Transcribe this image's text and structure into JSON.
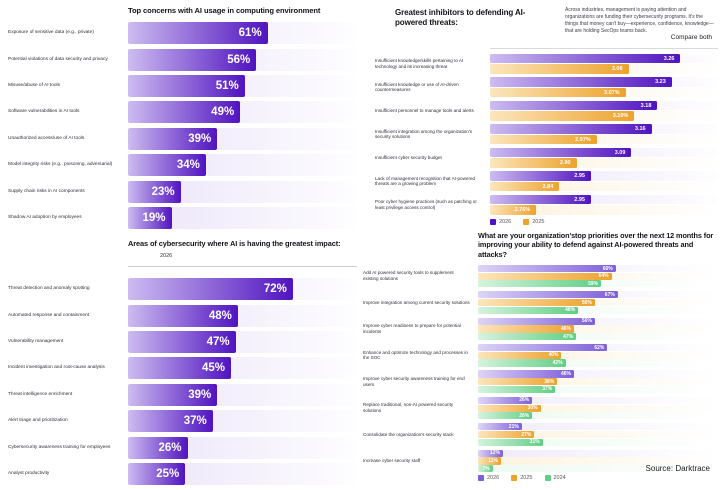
{
  "source": "Source: Darktrace",
  "colors": {
    "purple_2026_deep": "#5013c0",
    "purple_2026_mid": "#7e5fd9",
    "orange_2025": "#eda22c",
    "green_2024": "#5fcf85"
  },
  "chart_data": [
    {
      "type": "bar",
      "title": "Top concerns with AI usage in computing environment",
      "categories": [
        "Exposure of sensitive data (e.g., private)",
        "Potential violations of data security and privacy",
        "Misuse/abuse of AI tools",
        "Software vulnerabilities in AI tools",
        "Unauthorized access/use of AI tools",
        "Model integrity risks (e.g., poisoning, adversarial)",
        "Supply chain risks in AI components",
        "Shadow AI adoption by employees"
      ],
      "values": [
        61,
        56,
        51,
        49,
        39,
        34,
        23,
        19
      ],
      "value_labels": [
        "61%",
        "56%",
        "51%",
        "49%",
        "39%",
        "34%",
        "23%",
        "19%"
      ],
      "bar_color": "#5013c0",
      "xlim": [
        0,
        100
      ],
      "grid": false,
      "legend_position": "none"
    },
    {
      "type": "bar",
      "title": "Areas of cybersecurity where AI is having the greatest impact:",
      "year_header": "2026",
      "categories": [
        "Threat detection and anomaly spotting",
        "Automated response and containment",
        "Vulnerability management",
        "Incident investigation and root-cause analysis",
        "Threat intelligence enrichment",
        "Alert triage and prioritization",
        "Cybersecurity awareness training for employees",
        "Analyst productivity"
      ],
      "values": [
        72,
        48,
        47,
        45,
        39,
        37,
        26,
        25
      ],
      "value_labels": [
        "72%",
        "48%",
        "47%",
        "45%",
        "39%",
        "37%",
        "26%",
        "25%"
      ],
      "bar_color": "#5013c0",
      "xlim": [
        0,
        100
      ],
      "grid": false,
      "legend_position": "none"
    },
    {
      "type": "bar",
      "title": "Greatest inhibitors to defending AI-powered threats:",
      "description": "Across industries, management is paying attention and organizations are funding their cybersecurity programs. It's the things that money can't buy—experience, confidence, knowledge—that are holding SecOps teams back.",
      "compare_label": "Compare both",
      "categories": [
        "Insufficient knowledge/skills pertaining to AI technology and its increasing threat",
        "Insufficient knowledge or use of AI-driven countermeasures",
        "Insufficient personnel to manage tools and alerts",
        "Insufficient integration among the organization's security solutions",
        "Insufficient cyber security budget",
        "Lack of management recognition that AI-powered threats are a growing problem",
        "Poor cyber hygiene practices (such as patching or least privilege access control)"
      ],
      "series": [
        {
          "name": "2026",
          "color": "#5013c0",
          "values": [
            3.26,
            3.23,
            3.18,
            3.16,
            3.09,
            2.95,
            2.95
          ],
          "value_labels": [
            "3.26",
            "3.23",
            "3.18",
            "3.16",
            "3.09",
            "2.95",
            "2.95"
          ]
        },
        {
          "name": "2025",
          "color": "#eda22c",
          "values": [
            3.08,
            3.07,
            3.1,
            2.97,
            2.9,
            2.84,
            2.76
          ],
          "value_labels": [
            "3.08",
            "3.07%",
            "3.10%",
            "2.97%",
            "2.90",
            "2.84",
            "2.76%"
          ]
        }
      ],
      "xlim": [
        2.6,
        3.39
      ],
      "grid": false,
      "legend": [
        "2026",
        "2025"
      ],
      "legend_position": "bottom"
    },
    {
      "type": "bar",
      "title": "What are your organization'stop priorities over the next 12 months for improving your ability to defend against AI-powered threats and attacks?",
      "categories": [
        "Add AI powered security tools to supplement existing solutions",
        "Improve integration among current security solutions",
        "Improve cyber readiness to prepare for potential incidents",
        "Enhance and optimize technology and processes in the SOC",
        "Improve cyber security awareness training for end users",
        "Replace traditional, non-AI powered security solutions",
        "Consolidate the organization's security stack",
        "Increase cyber security staff"
      ],
      "series": [
        {
          "name": "2026",
          "color": "#7e5fd9",
          "values": [
            66,
            67,
            56,
            62,
            46,
            26,
            21,
            12
          ],
          "value_labels": [
            "66%",
            "67%",
            "56%",
            "62%",
            "46%",
            "26%",
            "21%",
            "12%"
          ]
        },
        {
          "name": "2025",
          "color": "#eda22c",
          "values": [
            64,
            56,
            46,
            40,
            38,
            30,
            27,
            11
          ],
          "value_labels": [
            "64%",
            "56%",
            "46%",
            "40%",
            "38%",
            "30%",
            "27%",
            "11%"
          ]
        },
        {
          "name": "2024",
          "color": "#5fcf85",
          "values": [
            59,
            48,
            47,
            42,
            37,
            26,
            31,
            7
          ],
          "value_labels": [
            "59%",
            "48%",
            "47%",
            "42%",
            "37%",
            "26%",
            "31%",
            "7%"
          ]
        }
      ],
      "xlim": [
        0,
        115
      ],
      "grid": false,
      "legend": [
        "2026",
        "2025",
        "2024"
      ],
      "legend_position": "bottom"
    }
  ]
}
